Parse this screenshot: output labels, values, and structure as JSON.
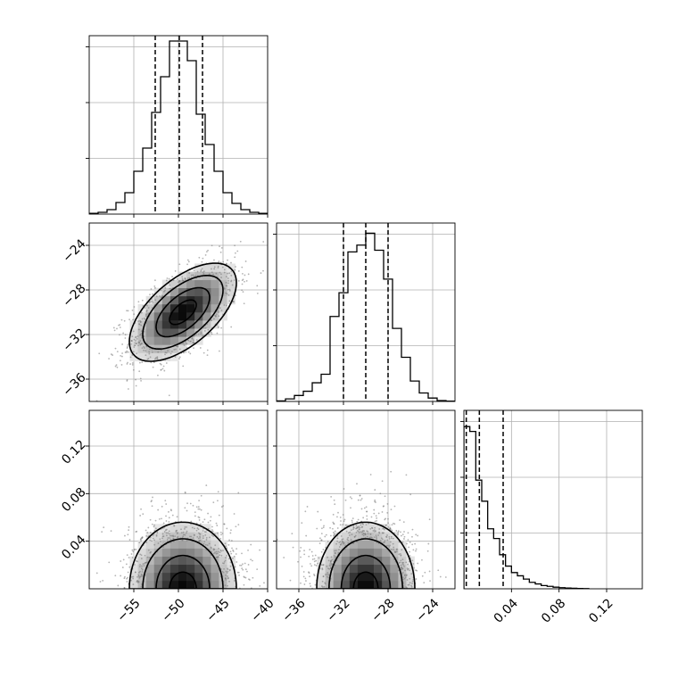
{
  "chart_data": {
    "type": "corner",
    "description_of_params": "three-parameter posterior corner plot with 1D histograms on the diagonal and 2D density/contours below",
    "params": [
      {
        "range": [
          -60,
          -40
        ],
        "ticks": [
          -55,
          -50,
          -45,
          -40
        ],
        "tick_labels": [
          "−55",
          "−50",
          "−45",
          "−40"
        ],
        "quantiles": [
          -52.6,
          -49.9,
          -47.3
        ],
        "hist_bins": [
          -59.5,
          -58.5,
          -57.5,
          -56.5,
          -55.5,
          -54.5,
          -53.5,
          -52.5,
          -51.5,
          -50.5,
          -49.5,
          -48.5,
          -47.5,
          -46.5,
          -45.5,
          -44.5,
          -43.5,
          -42.5,
          -41.5,
          -40.5
        ],
        "hist_counts": [
          0.4,
          1.0,
          2.5,
          6.5,
          12,
          24,
          37,
          57,
          77,
          97,
          97,
          86,
          56,
          39,
          24,
          12,
          6,
          2.5,
          1.0,
          0.4
        ],
        "hist_ymax": 100
      },
      {
        "range": [
          -38,
          -22
        ],
        "ticks": [
          -36,
          -32,
          -28,
          -24
        ],
        "tick_labels": [
          "−36",
          "−32",
          "−28",
          "−24"
        ],
        "quantiles": [
          -32.0,
          -30.0,
          -28.0
        ],
        "hist_bins": [
          -37.6,
          -36.8,
          -36.0,
          -35.2,
          -34.4,
          -33.6,
          -32.8,
          -32.0,
          -31.2,
          -30.4,
          -29.6,
          -28.8,
          -28.0,
          -27.2,
          -26.4,
          -25.6,
          -24.8,
          -24.0,
          -23.2,
          -22.4
        ],
        "hist_counts": [
          0.3,
          1.5,
          3.5,
          6,
          11,
          16,
          50,
          64,
          88,
          92,
          99,
          89,
          72,
          43,
          26,
          12,
          5,
          2,
          0.5,
          0.2
        ],
        "hist_ymax": 105
      },
      {
        "range": [
          0.0,
          0.15
        ],
        "ticks": [
          0.04,
          0.08,
          0.12
        ],
        "tick_labels": [
          "0.04",
          "0.08",
          "0.12"
        ],
        "quantiles": [
          0.002,
          0.013,
          0.033
        ],
        "hist_bins": [
          0.0025,
          0.0075,
          0.0125,
          0.0175,
          0.0225,
          0.0275,
          0.0325,
          0.0375,
          0.0425,
          0.0475,
          0.0525,
          0.0575,
          0.0625,
          0.0675,
          0.0725,
          0.0775,
          0.0825,
          0.0875,
          0.0925,
          0.0975,
          0.1025
        ],
        "hist_counts": [
          100,
          97,
          67,
          54,
          37,
          31,
          21,
          14,
          10,
          8,
          6,
          4,
          3,
          2,
          1.5,
          1,
          0.7,
          0.5,
          0.3,
          0.2,
          0.1
        ],
        "hist_ymax": 110
      }
    ],
    "pairs": [
      {
        "x_param": 0,
        "y_param": 1,
        "mean": [
          -49.5,
          -30.0
        ],
        "std": [
          3.0,
          2.2
        ],
        "rho": 0.6
      },
      {
        "x_param": 0,
        "y_param": 2,
        "mean": [
          -49.5,
          0.0
        ],
        "std": [
          3.0,
          0.028
        ],
        "rho": 0.0,
        "half_normal_y": true
      },
      {
        "x_param": 1,
        "y_param": 2,
        "mean": [
          -30.0,
          0.0
        ],
        "std": [
          2.2,
          0.028
        ],
        "rho": 0.0,
        "half_normal_y": true
      }
    ],
    "contour_levels_sigma": [
      0.5,
      1.0,
      1.5,
      2.0
    ],
    "scatter_points_per_panel": 1400,
    "grid": true
  }
}
